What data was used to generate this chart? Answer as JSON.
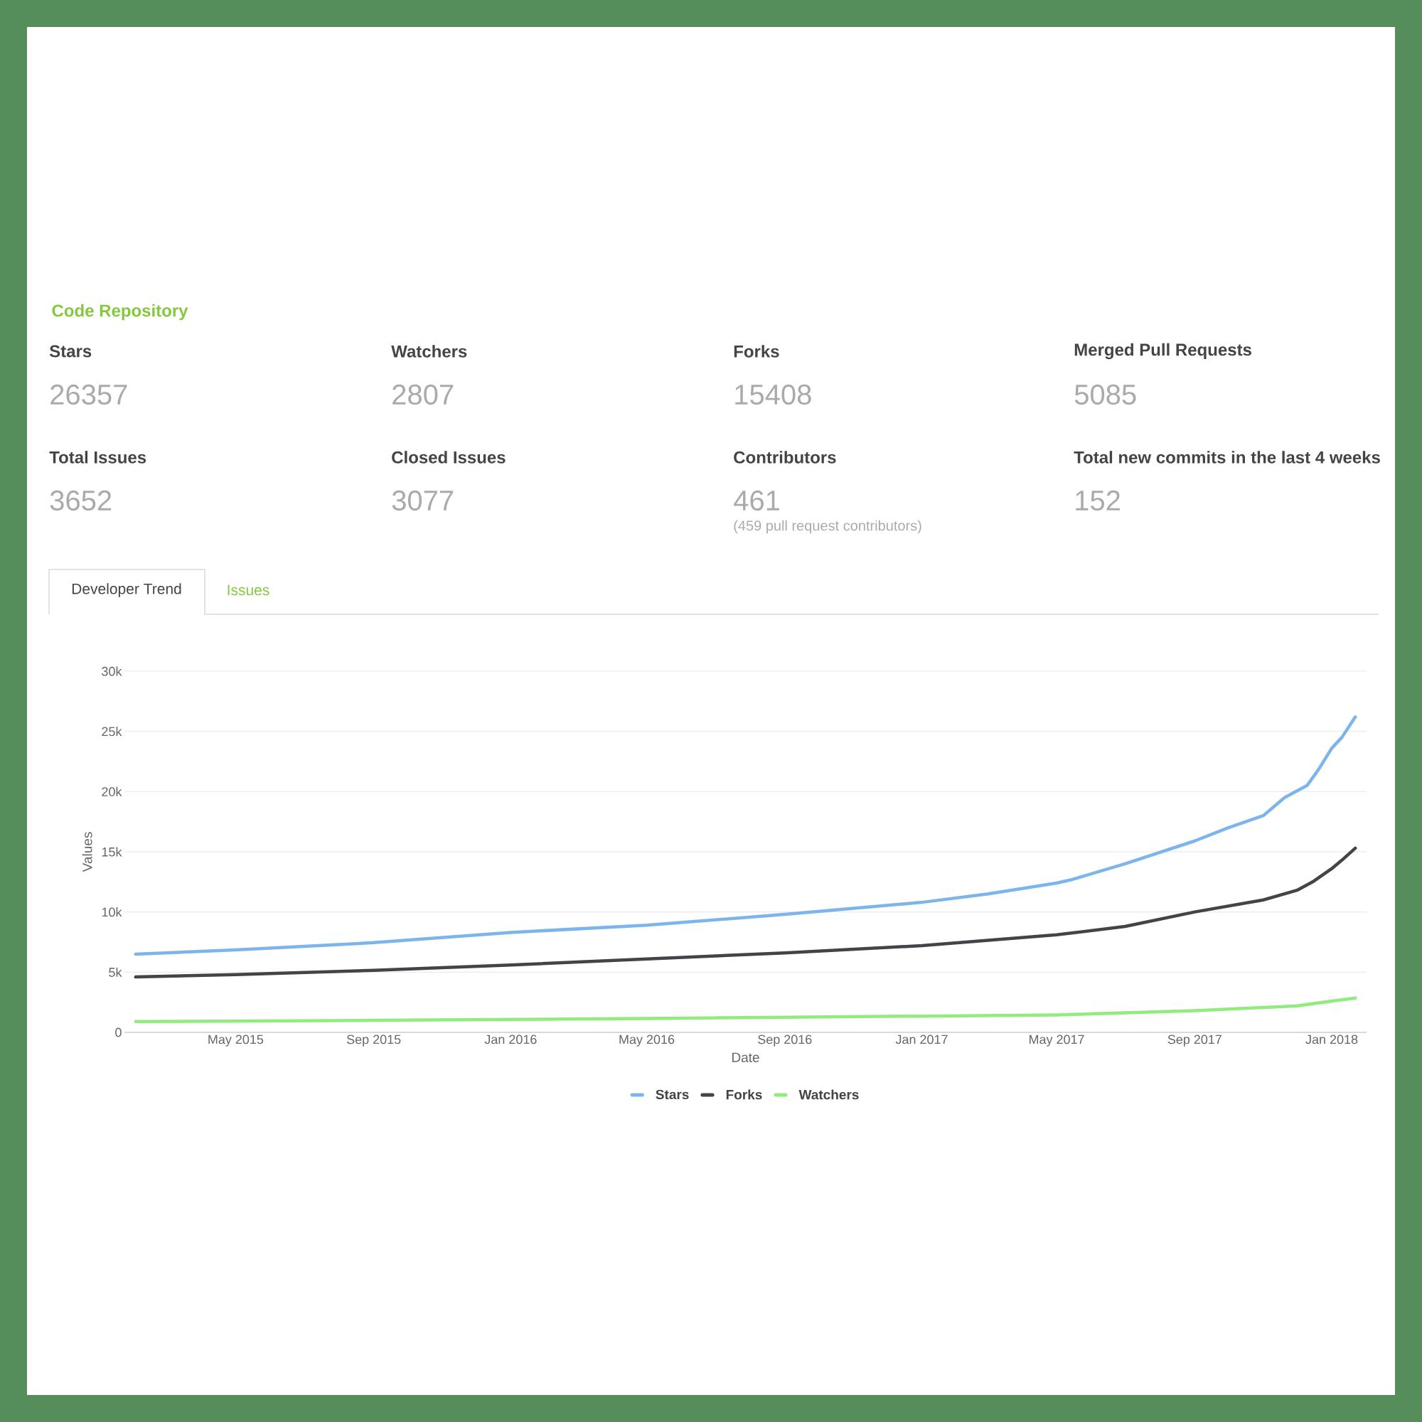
{
  "chart_data": [
    {
      "type": "other",
      "title": "Code Repository",
      "annotations": [
        "Stars",
        "26357",
        "Watchers",
        "2807",
        "Forks",
        "15408",
        "Merged Pull Requests",
        "5085",
        "Total Issues",
        "3652",
        "Closed Issues",
        "3077",
        "Contributors",
        "461",
        "Total new commits in the last 4 weeks",
        "152",
        "(459 pull request contributors)",
        "Developer Trend",
        "Issues"
      ]
    },
    {
      "type": "line",
      "xlabel": "Date",
      "ylabel": "Values",
      "xlim": [
        "2015-01-22",
        "2018-02-01"
      ],
      "xticks": [
        {
          "value": "2015-05-01",
          "label": "May 2015"
        },
        {
          "value": "2015-09-01",
          "label": "Sep 2015"
        },
        {
          "value": "2016-01-01",
          "label": "Jan 2016"
        },
        {
          "value": "2016-05-01",
          "label": "May 2016"
        },
        {
          "value": "2016-09-01",
          "label": "Sep 2016"
        },
        {
          "value": "2017-01-01",
          "label": "Jan 2017"
        },
        {
          "value": "2017-05-01",
          "label": "May 2017"
        },
        {
          "value": "2017-09-01",
          "label": "Sep 2017"
        },
        {
          "value": "2018-01-01",
          "label": "Jan 2018"
        }
      ],
      "ylim": [
        0,
        30000
      ],
      "yticks": [
        0,
        {
          "value": 5000,
          "label": "5k"
        },
        {
          "value": 10000,
          "label": "10k"
        },
        {
          "value": 15000,
          "label": "15k"
        },
        {
          "value": 20000,
          "label": "20k"
        },
        {
          "value": 25000,
          "label": "25k"
        },
        {
          "value": 30000,
          "label": "30k"
        }
      ],
      "grid": "y",
      "legend": "bottom",
      "marker": "none",
      "line_style": "solid",
      "series": [
        {
          "name": "Stars",
          "color": "#7cb5ec",
          "x": [
            "2015-02-01",
            "2015-05-01",
            "2015-09-01",
            "2016-01-01",
            "2016-05-01",
            "2016-09-01",
            "2017-01-01",
            "2017-03-01",
            "2017-05-01",
            "2017-05-15",
            "2017-07-01",
            "2017-09-01",
            "2017-10-01",
            "2017-11-01",
            "2017-11-20",
            "2017-12-10",
            "2017-12-20",
            "2018-01-01",
            "2018-01-10",
            "2018-01-22"
          ],
          "values": [
            6500,
            6850,
            7450,
            8300,
            8900,
            9800,
            10800,
            11500,
            12400,
            12700,
            14000,
            15900,
            17000,
            18000,
            19500,
            20500,
            21800,
            23600,
            24500,
            26200
          ]
        },
        {
          "name": "Forks",
          "color": "#434348",
          "x": [
            "2015-02-01",
            "2015-05-01",
            "2015-09-01",
            "2016-01-01",
            "2016-05-01",
            "2016-09-01",
            "2017-01-01",
            "2017-05-01",
            "2017-07-01",
            "2017-09-01",
            "2017-11-01",
            "2017-12-01",
            "2017-12-15",
            "2018-01-01",
            "2018-01-10",
            "2018-01-22"
          ],
          "values": [
            4600,
            4800,
            5150,
            5600,
            6100,
            6600,
            7200,
            8100,
            8800,
            10000,
            11000,
            11800,
            12500,
            13600,
            14300,
            15300
          ]
        },
        {
          "name": "Watchers",
          "color": "#90ed7d",
          "x": [
            "2015-02-01",
            "2015-09-01",
            "2016-05-01",
            "2016-09-01",
            "2017-01-01",
            "2017-05-01",
            "2017-09-01",
            "2017-12-01",
            "2018-01-01",
            "2018-01-22"
          ],
          "values": [
            900,
            1000,
            1150,
            1250,
            1350,
            1450,
            1800,
            2200,
            2600,
            2850
          ]
        }
      ]
    }
  ]
}
